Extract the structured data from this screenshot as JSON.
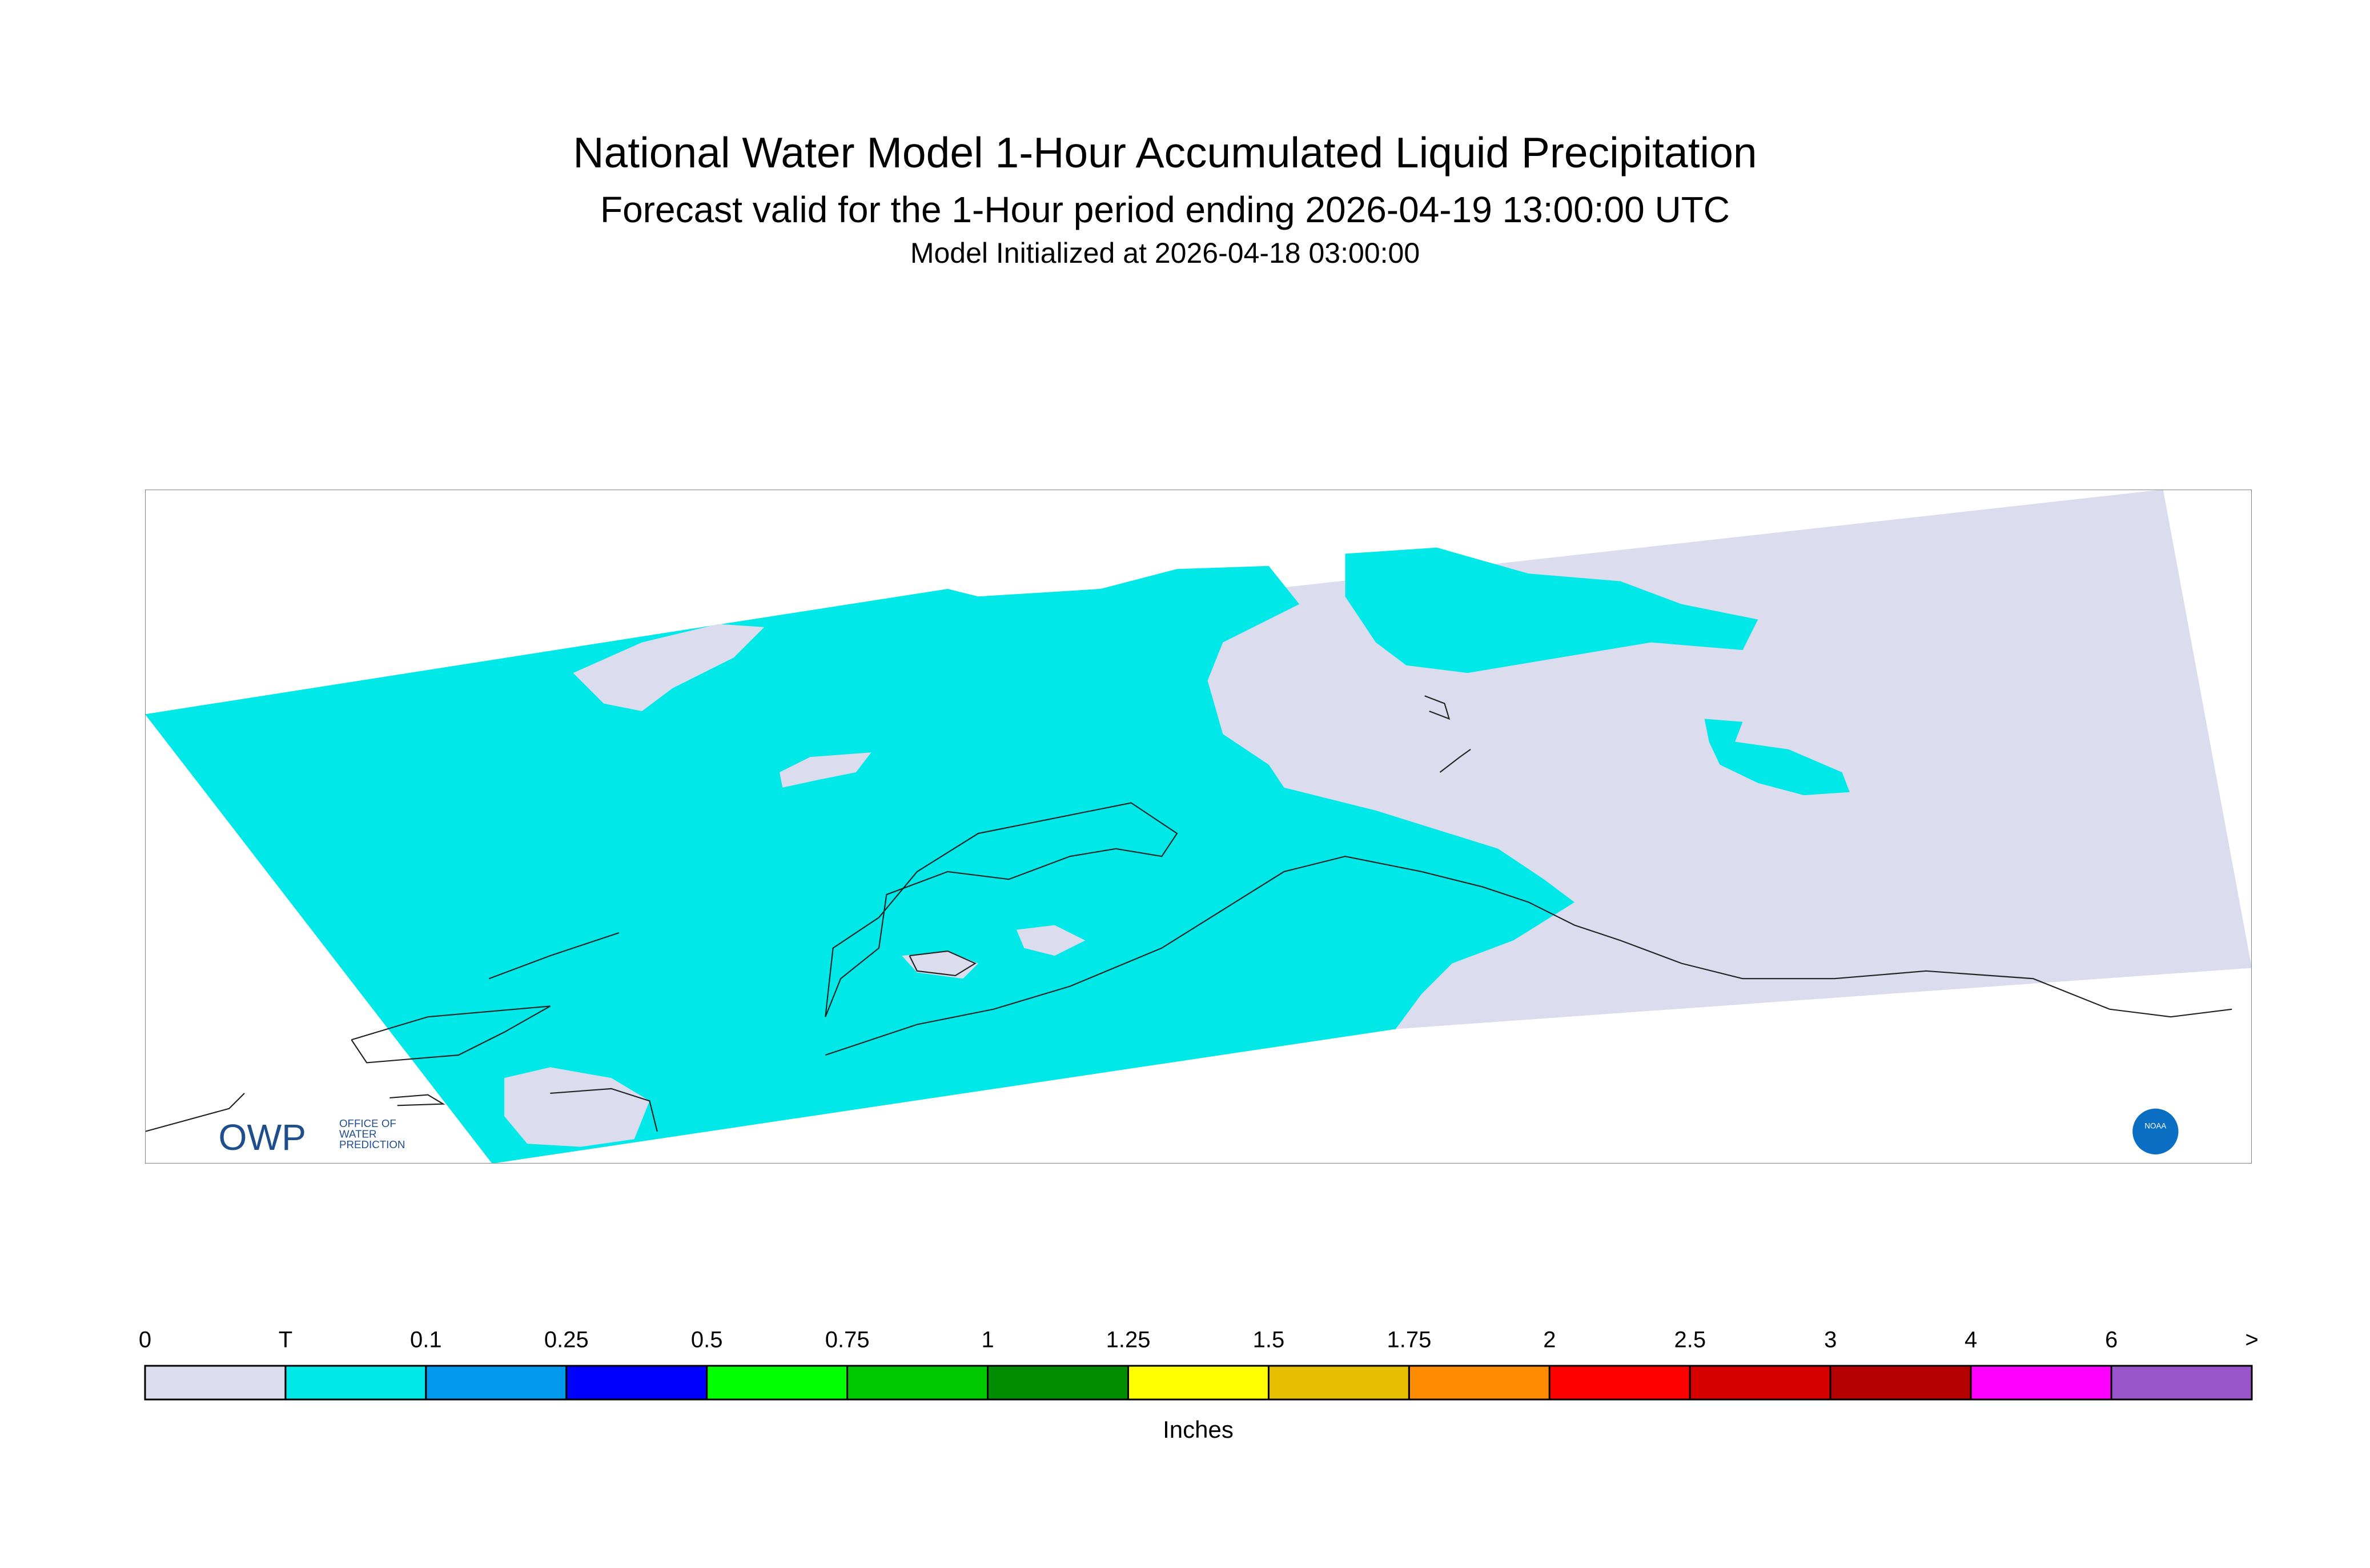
{
  "header": {
    "title": "National Water Model 1-Hour Accumulated Liquid Precipitation",
    "subtitle": "Forecast valid for the 1-Hour period ending 2026-04-19 13:00:00 UTC",
    "initialized": "Model Initialized at 2026-04-18 03:00:00"
  },
  "colorbar": {
    "labels": [
      "0",
      "T",
      "0.1",
      "0.25",
      "0.5",
      "0.75",
      "1",
      "1.25",
      "1.5",
      "1.75",
      "2",
      "2.5",
      "3",
      "4",
      "6",
      ">"
    ],
    "colors": [
      "#dcdcef",
      "#00e8e8",
      "#0099ee",
      "#0000ff",
      "#00ff00",
      "#00c800",
      "#008c00",
      "#ffff00",
      "#e6be00",
      "#ff8c00",
      "#ff0000",
      "#d70000",
      "#b40000",
      "#ff00ff",
      "#9955c9"
    ],
    "unit": "Inches"
  },
  "logo": {
    "owp": "OWP",
    "lines": [
      "OFFICE OF",
      "WATER",
      "PREDICTION"
    ],
    "noaa": "NOAA"
  }
}
